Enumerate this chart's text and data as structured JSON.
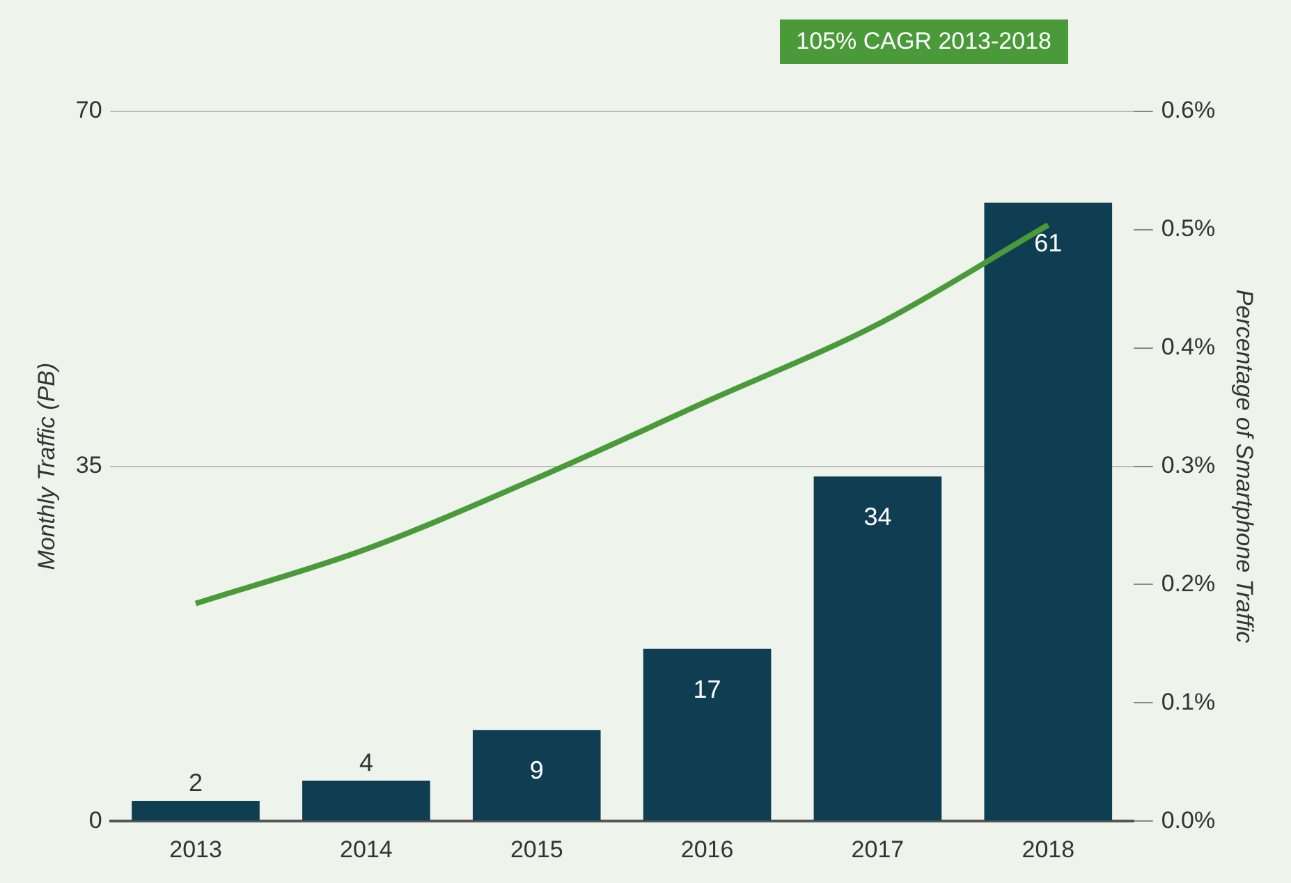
{
  "chart_data": {
    "type": "bar",
    "ylabel": "Monthly Traffic (PB)",
    "y2label": "Percentage of Smartphone Traffic",
    "categories": [
      "2013",
      "2014",
      "2015",
      "2016",
      "2017",
      "2018"
    ],
    "series": [
      {
        "color": "#0f3d52",
        "values": [
          2,
          4,
          9,
          17,
          34,
          61
        ],
        "value_labels": [
          "2",
          "4",
          "9",
          "17",
          "34",
          "61"
        ]
      },
      {
        "type": "line",
        "axis": "y2",
        "color": "#4a9a3a",
        "values": [
          0.184,
          0.23,
          0.29,
          0.355,
          0.42,
          0.504
        ],
        "marker": "none"
      }
    ],
    "ylim": [
      0,
      70
    ],
    "yticks": [
      0,
      35,
      70
    ],
    "y2lim": [
      0,
      0.6
    ],
    "y2ticks": [
      {
        "value": 0,
        "label": "0.0%"
      },
      {
        "value": 0.1,
        "label": "0.1%"
      },
      {
        "value": 0.2,
        "label": "0.2%"
      },
      {
        "value": 0.3,
        "label": "0.3%"
      },
      {
        "value": 0.4,
        "label": "0.4%"
      },
      {
        "value": 0.5,
        "label": "0.5%"
      },
      {
        "value": 0.6,
        "label": "0.6%"
      }
    ],
    "grid": "y",
    "legend": false,
    "annotations": [
      "105% CAGR 2013-2018"
    ]
  }
}
